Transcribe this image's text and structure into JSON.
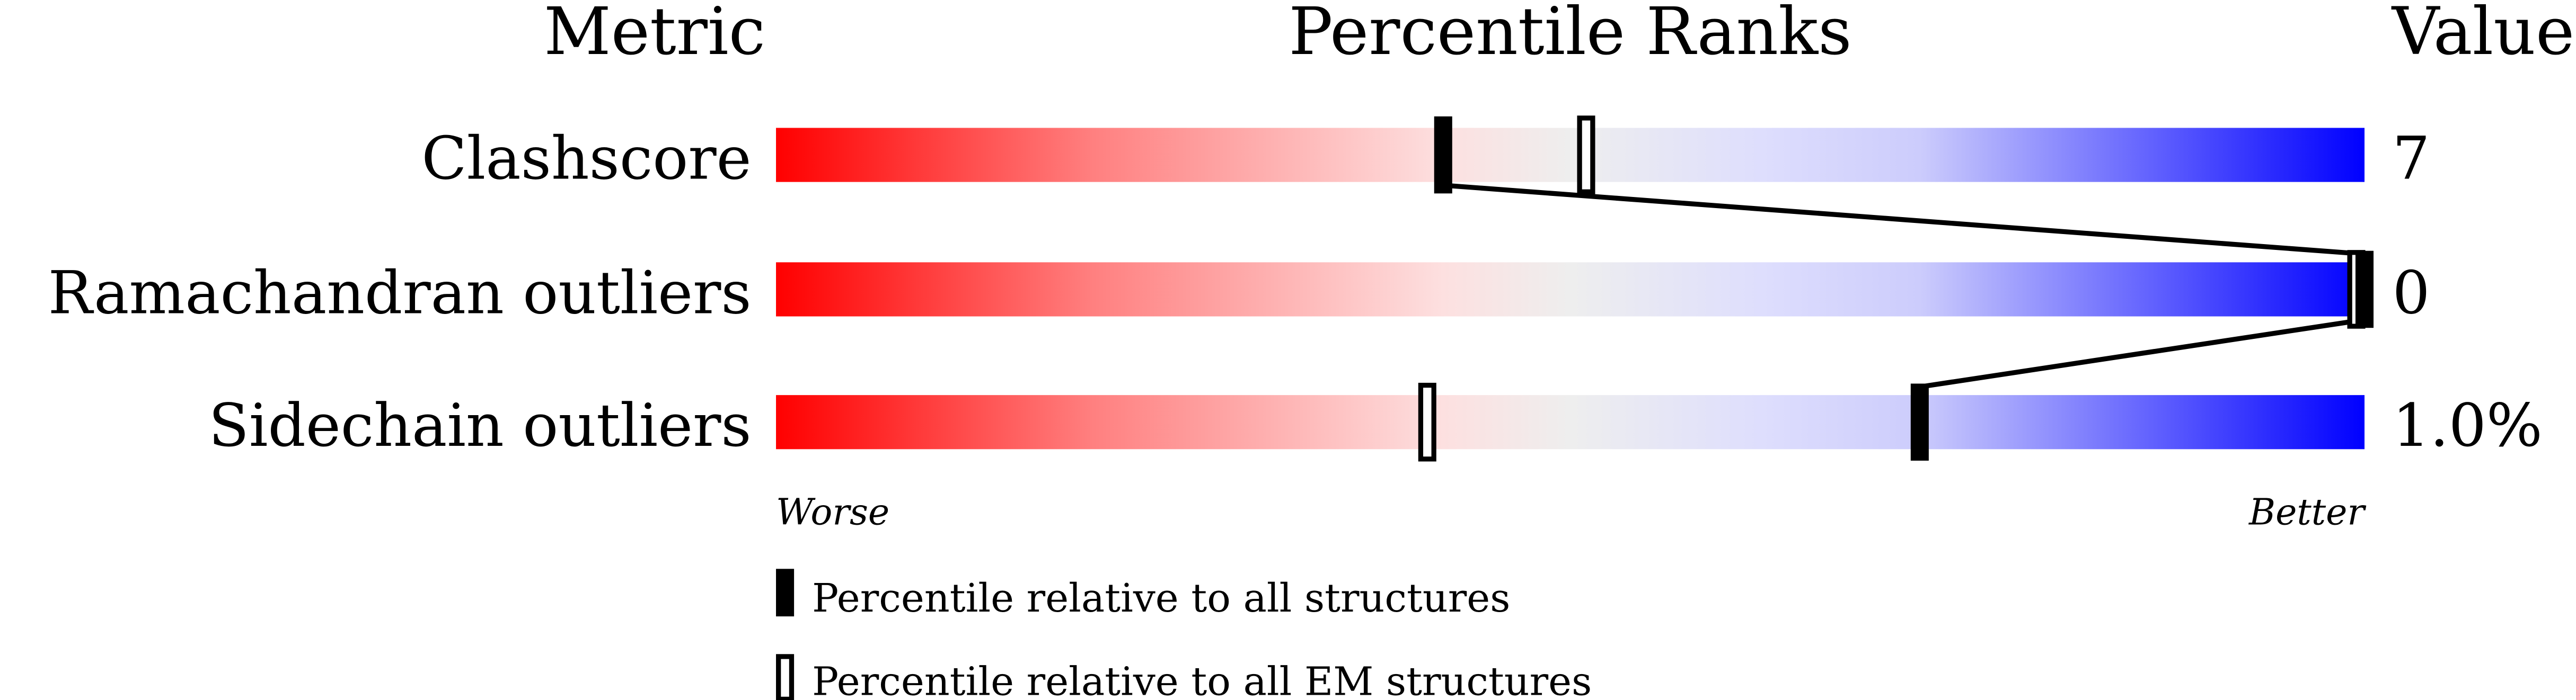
{
  "chart_data": {
    "type": "bar",
    "headers": {
      "metric": "Metric",
      "ranks": "Percentile Ranks",
      "value": "Value"
    },
    "xlim": [
      0,
      100
    ],
    "axis_labels": {
      "left": "Worse",
      "right": "Better"
    },
    "rows": [
      {
        "metric": "Clashscore",
        "value": "7",
        "percentile_all": 42,
        "percentile_em": 51
      },
      {
        "metric": "Ramachandran outliers",
        "value": "0",
        "percentile_all": 100,
        "percentile_em": 100
      },
      {
        "metric": "Sidechain outliers",
        "value": "1.0%",
        "percentile_all": 72,
        "percentile_em": 41
      }
    ],
    "legend": [
      {
        "marker": "filled",
        "label": "Percentile relative to all structures"
      },
      {
        "marker": "open",
        "label": "Percentile relative to all EM structures"
      }
    ],
    "colors": {
      "worse": "#ff0000",
      "middle": "#eeeeee",
      "better": "#0000ff",
      "marker": "#000000"
    }
  }
}
